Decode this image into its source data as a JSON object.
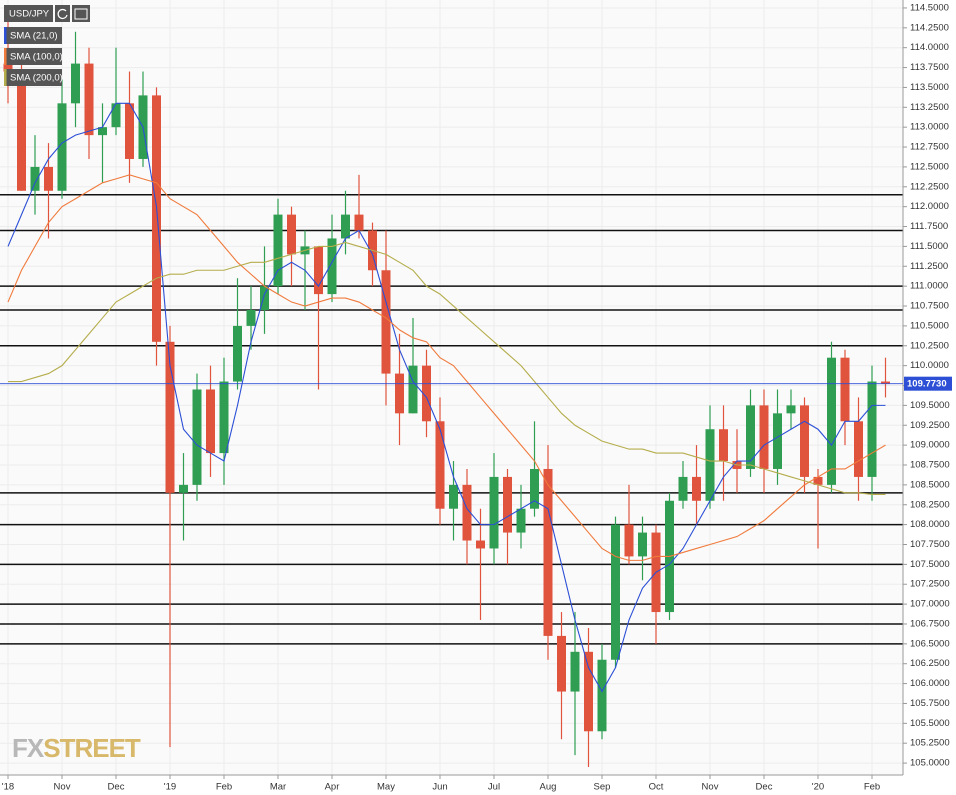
{
  "chart_data": {
    "type": "candlestick",
    "symbol": "USD/JPY",
    "categories": [
      "'18",
      null,
      null,
      null,
      "Nov",
      null,
      null,
      null,
      "Dec",
      null,
      null,
      null,
      "'19",
      null,
      null,
      null,
      "Feb",
      null,
      null,
      null,
      "Mar",
      null,
      null,
      null,
      "Apr",
      null,
      null,
      null,
      "May",
      null,
      null,
      null,
      "Jun",
      null,
      null,
      null,
      "Jul",
      null,
      null,
      null,
      "Aug",
      null,
      null,
      null,
      "Sep",
      null,
      null,
      null,
      "Oct",
      null,
      null,
      null,
      "Nov",
      null,
      null,
      null,
      "Dec",
      null,
      null,
      null,
      "'20",
      null,
      null,
      null,
      "Feb",
      null
    ],
    "open": [
      113.8,
      113.7,
      112.2,
      112.5,
      112.2,
      113.3,
      113.8,
      112.9,
      113.0,
      113.3,
      112.6,
      113.4,
      110.3,
      108.4,
      108.5,
      109.7,
      108.9,
      109.8,
      110.5,
      110.7,
      111.0,
      111.9,
      111.4,
      111.5,
      110.9,
      111.6,
      111.9,
      111.7,
      111.2,
      109.9,
      109.4,
      110.0,
      109.3,
      108.2,
      108.5,
      107.8,
      107.7,
      108.6,
      107.9,
      108.2,
      108.7,
      106.6,
      105.9,
      106.4,
      105.4,
      106.3,
      108.0,
      107.6,
      107.9,
      106.9,
      108.3,
      108.6,
      108.3,
      109.2,
      108.8,
      108.7,
      109.5,
      108.7,
      109.4,
      109.5,
      108.6,
      108.5,
      110.1,
      109.3,
      108.6,
      109.8
    ],
    "high": [
      114.5,
      113.9,
      112.9,
      112.8,
      113.6,
      114.2,
      114.0,
      113.3,
      114.0,
      113.7,
      113.7,
      113.5,
      110.5,
      108.9,
      109.9,
      110.0,
      110.1,
      111.1,
      111.0,
      111.5,
      112.1,
      112.0,
      111.7,
      111.5,
      111.9,
      112.2,
      112.4,
      111.8,
      111.7,
      110.4,
      110.6,
      110.2,
      109.6,
      108.8,
      108.7,
      108.2,
      108.9,
      108.7,
      108.5,
      109.3,
      109.0,
      106.9,
      106.9,
      106.7,
      106.5,
      108.1,
      108.5,
      108.1,
      108.0,
      108.4,
      108.8,
      109.0,
      109.5,
      109.5,
      109.2,
      109.7,
      109.7,
      109.7,
      109.7,
      109.6,
      108.7,
      110.3,
      110.2,
      109.6,
      110.0,
      110.1
    ],
    "low": [
      113.3,
      112.2,
      111.9,
      111.6,
      112.1,
      113.0,
      112.6,
      112.3,
      112.9,
      112.3,
      112.5,
      110.0,
      105.2,
      107.8,
      108.3,
      108.6,
      108.5,
      109.7,
      110.2,
      110.4,
      110.9,
      111.0,
      110.7,
      109.7,
      110.8,
      111.4,
      111.6,
      111.0,
      109.5,
      109.0,
      109.4,
      109.1,
      108.0,
      107.8,
      107.5,
      106.8,
      107.5,
      107.5,
      107.7,
      108.1,
      106.3,
      105.3,
      105.1,
      104.95,
      105.3,
      106.2,
      107.5,
      107.3,
      106.5,
      106.8,
      108.2,
      108.0,
      108.2,
      108.3,
      108.4,
      108.6,
      108.4,
      108.5,
      109.2,
      108.4,
      107.7,
      108.4,
      109.0,
      108.3,
      108.3,
      109.6
    ],
    "close": [
      113.7,
      112.2,
      112.5,
      112.2,
      113.3,
      113.8,
      112.9,
      113.0,
      113.3,
      112.6,
      113.4,
      110.3,
      108.4,
      108.5,
      109.7,
      108.9,
      109.8,
      110.5,
      110.7,
      111.0,
      111.9,
      111.4,
      111.5,
      110.9,
      111.6,
      111.9,
      111.7,
      111.2,
      109.9,
      109.4,
      110.0,
      109.3,
      108.2,
      108.5,
      107.8,
      107.7,
      108.6,
      107.9,
      108.2,
      108.7,
      106.6,
      105.9,
      106.4,
      105.4,
      106.3,
      108.0,
      107.6,
      107.9,
      106.9,
      108.3,
      108.6,
      108.3,
      109.2,
      108.8,
      108.7,
      109.5,
      108.7,
      109.4,
      109.5,
      108.6,
      108.5,
      110.1,
      109.3,
      108.6,
      109.8,
      109.77
    ],
    "up_color": "#2f9e52",
    "down_color": "#e0533d",
    "series": [
      {
        "name": "SMA (21,0)",
        "color": "#2c4fd6",
        "values": [
          111.5,
          111.9,
          112.3,
          112.6,
          112.8,
          112.9,
          112.95,
          113.0,
          113.3,
          113.3,
          113.0,
          112.0,
          110.0,
          109.2,
          109.0,
          108.9,
          108.8,
          109.5,
          110.3,
          110.9,
          111.2,
          111.3,
          111.2,
          111.0,
          111.3,
          111.6,
          111.7,
          111.4,
          110.8,
          110.2,
          109.8,
          109.6,
          109.2,
          108.6,
          108.2,
          108.0,
          108.0,
          108.1,
          108.2,
          108.3,
          108.2,
          107.5,
          106.8,
          106.2,
          105.9,
          106.2,
          106.8,
          107.2,
          107.4,
          107.5,
          107.7,
          108.0,
          108.3,
          108.6,
          108.8,
          108.8,
          109.0,
          109.1,
          109.2,
          109.3,
          109.2,
          109.0,
          109.3,
          109.3,
          109.5,
          109.5
        ]
      },
      {
        "name": "SMA (100,0)",
        "color": "#f07a3c",
        "values": [
          110.8,
          111.2,
          111.5,
          111.8,
          112.0,
          112.1,
          112.2,
          112.3,
          112.35,
          112.4,
          112.35,
          112.3,
          112.1,
          112.0,
          111.9,
          111.7,
          111.5,
          111.3,
          111.15,
          111.0,
          110.9,
          110.8,
          110.75,
          110.8,
          110.85,
          110.85,
          110.8,
          110.7,
          110.6,
          110.45,
          110.35,
          110.3,
          110.1,
          110.0,
          109.8,
          109.6,
          109.4,
          109.2,
          109.0,
          108.8,
          108.5,
          108.3,
          108.1,
          107.9,
          107.7,
          107.6,
          107.55,
          107.55,
          107.6,
          107.6,
          107.65,
          107.7,
          107.75,
          107.8,
          107.85,
          107.95,
          108.05,
          108.2,
          108.35,
          108.5,
          108.6,
          108.7,
          108.7,
          108.8,
          108.9,
          109.0
        ]
      },
      {
        "name": "SMA (200,0)",
        "color": "#b5ad4c",
        "values": [
          109.8,
          109.8,
          109.85,
          109.9,
          110.0,
          110.2,
          110.4,
          110.6,
          110.8,
          110.9,
          111.0,
          111.1,
          111.15,
          111.15,
          111.2,
          111.2,
          111.2,
          111.25,
          111.3,
          111.3,
          111.35,
          111.4,
          111.45,
          111.5,
          111.5,
          111.55,
          111.5,
          111.45,
          111.4,
          111.3,
          111.2,
          111.0,
          110.9,
          110.75,
          110.6,
          110.45,
          110.3,
          110.15,
          110.0,
          109.8,
          109.6,
          109.4,
          109.25,
          109.15,
          109.05,
          109.0,
          108.95,
          108.95,
          108.9,
          108.9,
          108.9,
          108.85,
          108.8,
          108.8,
          108.75,
          108.75,
          108.7,
          108.65,
          108.6,
          108.55,
          108.5,
          108.45,
          108.4,
          108.4,
          108.38,
          108.38
        ]
      }
    ],
    "levels": [
      112.15,
      111.7,
      111.0,
      110.7,
      110.25,
      108.4,
      108.0,
      107.5,
      107.0,
      106.75,
      106.5
    ],
    "last_price": {
      "value": 109.773,
      "label": "109.7730"
    },
    "last_price_color": "#2c4fd6",
    "ylim": [
      104.85,
      114.6
    ],
    "yticks": [
      {
        "value": 114.5,
        "label": "114.5000"
      },
      {
        "value": 114.25,
        "label": "114.2500"
      },
      {
        "value": 114,
        "label": "114.0000"
      },
      {
        "value": 113.75,
        "label": "113.7500"
      },
      {
        "value": 113.5,
        "label": "113.5000"
      },
      {
        "value": 113.25,
        "label": "113.2500"
      },
      {
        "value": 113,
        "label": "113.0000"
      },
      {
        "value": 112.75,
        "label": "112.7500"
      },
      {
        "value": 112.5,
        "label": "112.5000"
      },
      {
        "value": 112.25,
        "label": "112.2500"
      },
      {
        "value": 112,
        "label": "112.0000"
      },
      {
        "value": 111.75,
        "label": "111.7500"
      },
      {
        "value": 111.5,
        "label": "111.5000"
      },
      {
        "value": 111.25,
        "label": "111.2500"
      },
      {
        "value": 111,
        "label": "111.0000"
      },
      {
        "value": 110.75,
        "label": "110.7500"
      },
      {
        "value": 110.5,
        "label": "110.5000"
      },
      {
        "value": 110.25,
        "label": "110.2500"
      },
      {
        "value": 110,
        "label": "110.0000"
      },
      {
        "value": 109.75,
        "label": "109.7500"
      },
      {
        "value": 109.5,
        "label": "109.5000"
      },
      {
        "value": 109.25,
        "label": "109.2500"
      },
      {
        "value": 109,
        "label": "109.0000"
      },
      {
        "value": 108.75,
        "label": "108.7500"
      },
      {
        "value": 108.5,
        "label": "108.5000"
      },
      {
        "value": 108.25,
        "label": "108.2500"
      },
      {
        "value": 108,
        "label": "108.0000"
      },
      {
        "value": 107.75,
        "label": "107.7500"
      },
      {
        "value": 107.5,
        "label": "107.5000"
      },
      {
        "value": 107.25,
        "label": "107.2500"
      },
      {
        "value": 107,
        "label": "107.0000"
      },
      {
        "value": 106.75,
        "label": "106.7500"
      },
      {
        "value": 106.5,
        "label": "106.5000"
      },
      {
        "value": 106.25,
        "label": "106.2500"
      },
      {
        "value": 106,
        "label": "106.0000"
      },
      {
        "value": 105.75,
        "label": "105.7500"
      },
      {
        "value": 105.5,
        "label": "105.5000"
      },
      {
        "value": 105.25,
        "label": "105.2500"
      },
      {
        "value": 105,
        "label": "105.0000"
      }
    ],
    "grid": true
  },
  "watermark": {
    "prefix": "FX",
    "suffix": "STREET"
  }
}
